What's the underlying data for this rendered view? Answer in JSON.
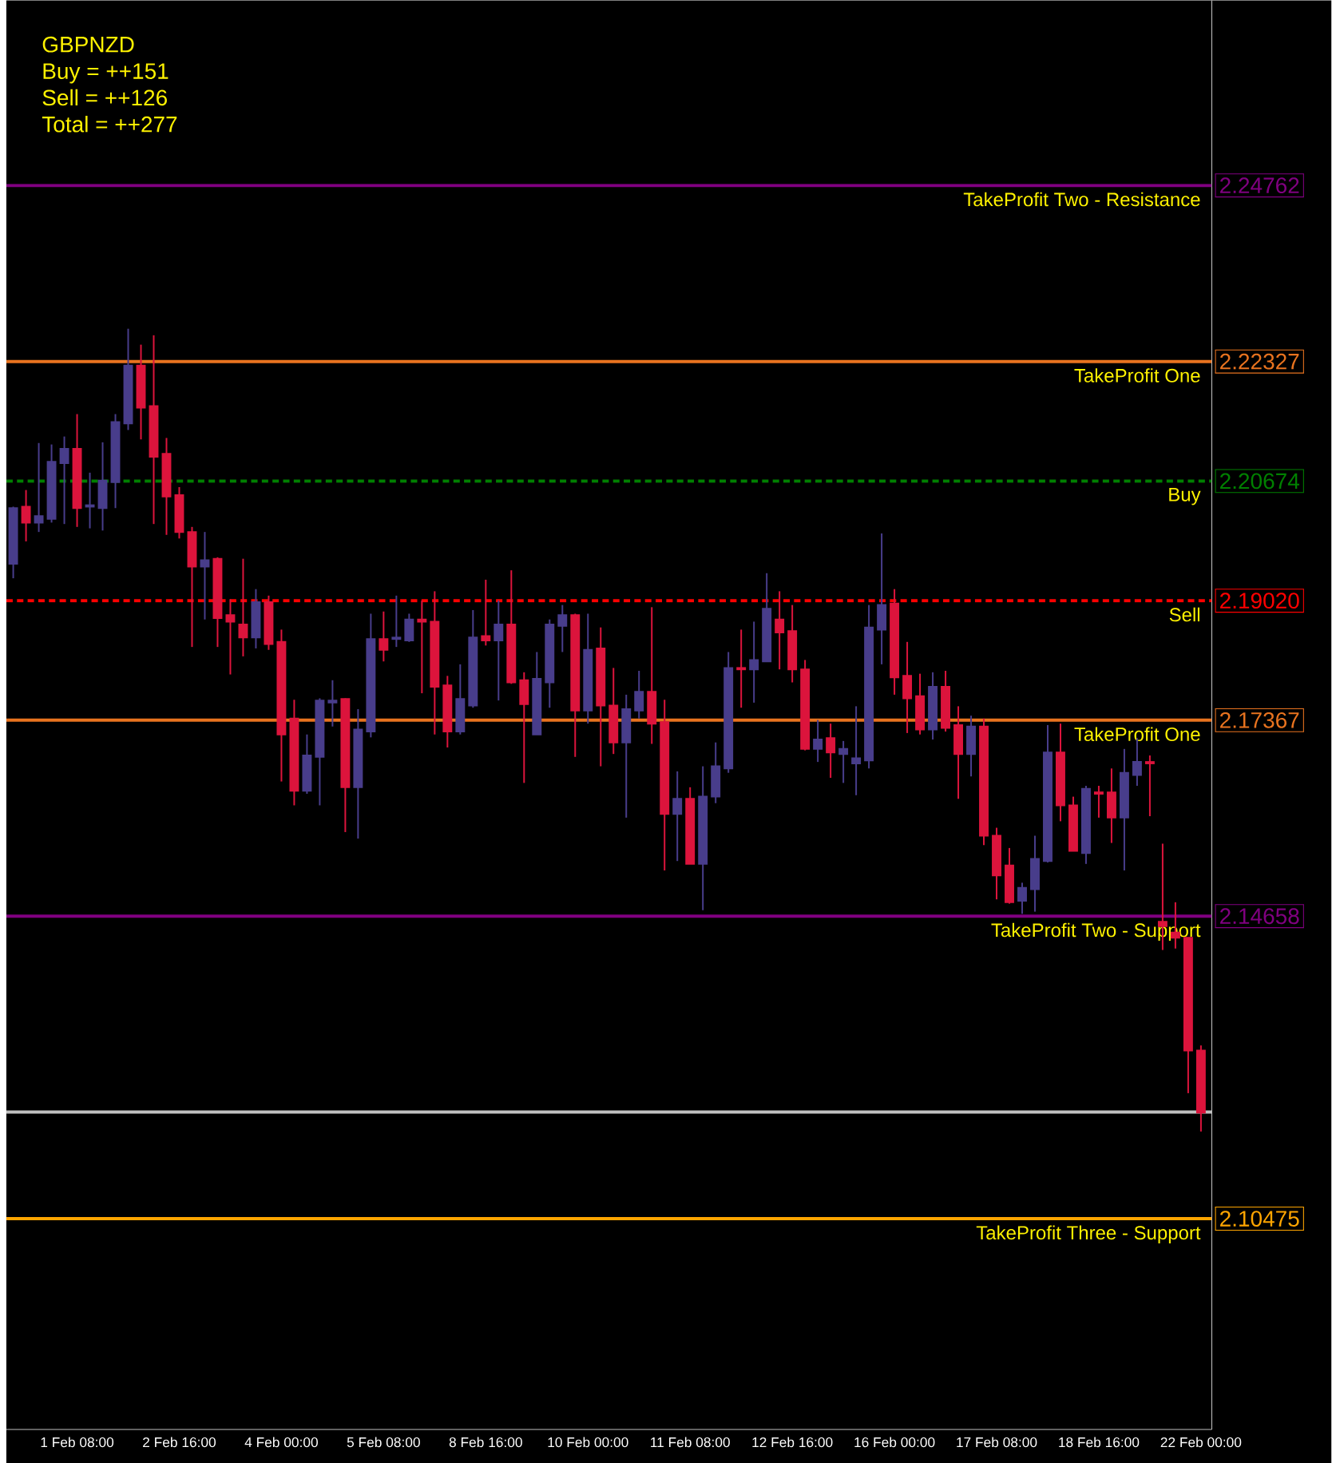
{
  "chart_data": {
    "type": "candlestick",
    "categories": [
      null,
      null,
      null,
      null,
      null,
      "1 Feb 08:00",
      null,
      null,
      null,
      null,
      null,
      null,
      null,
      "2 Feb 16:00",
      null,
      null,
      null,
      null,
      null,
      null,
      null,
      "4 Feb 00:00",
      null,
      null,
      null,
      null,
      null,
      null,
      null,
      "5 Feb 08:00",
      null,
      null,
      null,
      null,
      null,
      null,
      null,
      "8 Feb 16:00",
      null,
      null,
      null,
      null,
      null,
      null,
      null,
      "10 Feb 00:00",
      null,
      null,
      null,
      null,
      null,
      null,
      null,
      "11 Feb 08:00",
      null,
      null,
      null,
      null,
      null,
      null,
      null,
      "12 Feb 16:00",
      null,
      null,
      null,
      null,
      null,
      null,
      null,
      "16 Feb 00:00",
      null,
      null,
      null,
      null,
      null,
      null,
      null,
      "17 Feb 08:00",
      null,
      null,
      null,
      null,
      null,
      null,
      null,
      "18 Feb 16:00",
      null,
      null,
      null,
      null,
      null,
      null,
      null,
      "22 Feb 00:00"
    ],
    "ohlc": [
      [
        2.1953,
        2.2032,
        2.1933,
        2.203
      ],
      [
        2.2032,
        2.2055,
        2.1984,
        2.201
      ],
      [
        2.201,
        2.212,
        2.1997,
        2.2019
      ],
      [
        2.2015,
        2.2118,
        2.201,
        2.2094
      ],
      [
        2.2092,
        2.2129,
        2.2008,
        2.2112
      ],
      [
        2.2112,
        2.216,
        2.2004,
        2.203
      ],
      [
        2.2032,
        2.2079,
        2.2002,
        2.2034
      ],
      [
        2.203,
        2.2121,
        2.1999,
        2.2068
      ],
      [
        2.2066,
        2.216,
        2.203,
        2.2149
      ],
      [
        2.2147,
        2.2278,
        2.2138,
        2.2227
      ],
      [
        2.2227,
        2.2256,
        2.2125,
        2.2169
      ],
      [
        2.2171,
        2.2269,
        2.2008,
        2.2101
      ],
      [
        2.2105,
        2.2127,
        2.1993,
        2.2046
      ],
      [
        2.2048,
        2.2059,
        2.1988,
        2.1997
      ],
      [
        2.1997,
        2.2004,
        2.1838,
        2.1949
      ],
      [
        2.1949,
        2.1997,
        2.1876,
        2.1958
      ],
      [
        2.196,
        2.1962,
        2.1838,
        2.1878
      ],
      [
        2.1882,
        2.1904,
        2.18,
        2.1873
      ],
      [
        2.1869,
        2.196,
        2.1825,
        2.1851
      ],
      [
        2.1851,
        2.1918,
        2.1836,
        2.19
      ],
      [
        2.19,
        2.1909,
        2.1834,
        2.1842
      ],
      [
        2.1845,
        2.1862,
        2.1652,
        2.1717
      ],
      [
        2.1739,
        2.1765,
        2.1619,
        2.1639
      ],
      [
        2.1639,
        2.1717,
        2.1635,
        2.1688
      ],
      [
        2.1686,
        2.1767,
        2.1619,
        2.1764
      ],
      [
        2.1761,
        2.1792,
        2.1728,
        2.1764
      ],
      [
        2.1766,
        2.1767,
        2.1582,
        2.1644
      ],
      [
        2.1644,
        2.1752,
        2.1573,
        2.1724
      ],
      [
        2.1721,
        2.1884,
        2.1713,
        2.1849
      ],
      [
        2.1849,
        2.1887,
        2.1818,
        2.1834
      ],
      [
        2.1849,
        2.1909,
        2.1838,
        2.1851
      ],
      [
        2.1847,
        2.1884,
        2.1845,
        2.1876
      ],
      [
        2.1876,
        2.1902,
        2.1774,
        2.1873
      ],
      [
        2.1873,
        2.1915,
        2.1717,
        2.1783
      ],
      [
        2.1785,
        2.1798,
        2.1699,
        2.1721
      ],
      [
        2.1721,
        2.1814,
        2.1717,
        2.1766
      ],
      [
        2.1757,
        2.1889,
        2.1754,
        2.1851
      ],
      [
        2.1853,
        2.1931,
        2.184,
        2.1847
      ],
      [
        2.1847,
        2.1902,
        2.1764,
        2.1869
      ],
      [
        2.1869,
        2.1944,
        2.1787,
        2.1789
      ],
      [
        2.1792,
        2.1803,
        2.165,
        2.1759
      ],
      [
        2.1717,
        2.1831,
        2.1717,
        2.1794
      ],
      [
        2.1789,
        2.1876,
        2.1754,
        2.1869
      ],
      [
        2.1867,
        2.1896,
        2.1831,
        2.1882
      ],
      [
        2.1882,
        2.1884,
        2.1686,
        2.175
      ],
      [
        2.175,
        2.1884,
        2.1732,
        2.1834
      ],
      [
        2.1836,
        2.1865,
        2.1673,
        2.1757
      ],
      [
        2.1757,
        2.1809,
        2.169,
        2.1706
      ],
      [
        2.1706,
        2.1772,
        2.1602,
        2.1752
      ],
      [
        2.175,
        2.1805,
        2.1739,
        2.1776
      ],
      [
        2.1776,
        2.1893,
        2.1704,
        2.1732
      ],
      [
        2.1734,
        2.1765,
        2.1529,
        2.1607
      ],
      [
        2.1607,
        2.1666,
        2.1542,
        2.1628
      ],
      [
        2.1628,
        2.1644,
        2.1538,
        2.1538
      ],
      [
        2.1538,
        2.1673,
        2.1474,
        2.1631
      ],
      [
        2.1631,
        2.1706,
        2.1622,
        2.1673
      ],
      [
        2.167,
        2.1831,
        2.1664,
        2.1809
      ],
      [
        2.1809,
        2.1862,
        2.1754,
        2.1807
      ],
      [
        2.1807,
        2.1873,
        2.1761,
        2.182
      ],
      [
        2.1818,
        2.194,
        2.1818,
        2.1891
      ],
      [
        2.1876,
        2.1915,
        2.1807,
        2.1858
      ],
      [
        2.186,
        2.1896,
        2.1789,
        2.1807
      ],
      [
        2.1807,
        2.182,
        2.1695,
        2.1697
      ],
      [
        2.1697,
        2.1737,
        2.1679,
        2.171
      ],
      [
        2.1712,
        2.1732,
        2.1657,
        2.1692
      ],
      [
        2.169,
        2.1708,
        2.165,
        2.1697
      ],
      [
        2.1677,
        2.1756,
        2.1633,
        2.1684
      ],
      [
        2.1681,
        2.1896,
        2.167,
        2.1865
      ],
      [
        2.1862,
        2.1995,
        2.1814,
        2.1896
      ],
      [
        2.1898,
        2.1918,
        2.1772,
        2.1796
      ],
      [
        2.1798,
        2.1845,
        2.1719,
        2.1767
      ],
      [
        2.177,
        2.1801,
        2.1717,
        2.1724
      ],
      [
        2.1724,
        2.1803,
        2.171,
        2.1783
      ],
      [
        2.1783,
        2.1805,
        2.1721,
        2.1726
      ],
      [
        2.173,
        2.1756,
        2.1628,
        2.169
      ],
      [
        2.169,
        2.1743,
        2.1659,
        2.1728
      ],
      [
        2.1728,
        2.1739,
        2.1564,
        2.1577
      ],
      [
        2.1577,
        2.1588,
        2.1489,
        2.1522
      ],
      [
        2.1536,
        2.156,
        2.1483,
        2.1485
      ],
      [
        2.1487,
        2.1512,
        2.1469,
        2.1505
      ],
      [
        2.1503,
        2.1577,
        2.1472,
        2.1545
      ],
      [
        2.1542,
        2.173,
        2.154,
        2.1692
      ],
      [
        2.1692,
        2.1732,
        2.1597,
        2.1619
      ],
      [
        2.1619,
        2.1631,
        2.1556,
        2.1556
      ],
      [
        2.1553,
        2.1646,
        2.1538,
        2.1642
      ],
      [
        2.1637,
        2.1646,
        2.1602,
        2.1635
      ],
      [
        2.1637,
        2.167,
        2.1567,
        2.1602
      ],
      [
        2.1602,
        2.1697,
        2.1529,
        2.1664
      ],
      [
        2.1661,
        2.1712,
        2.1646,
        2.1679
      ],
      [
        2.1679,
        2.1688,
        2.1604,
        2.1677
      ],
      [
        2.1458,
        2.1566,
        2.1419,
        2.1452
      ],
      [
        2.1443,
        2.1485,
        2.1421,
        2.1436
      ],
      [
        2.1436,
        2.1436,
        2.1221,
        2.128
      ],
      [
        2.128,
        2.1287,
        2.1168,
        2.1194
      ]
    ],
    "colors": [
      "#483d8b",
      "#dc143c",
      "#483d8b",
      "#483d8b",
      "#483d8b",
      "#dc143c",
      "#483d8b",
      "#483d8b",
      "#483d8b",
      "#483d8b",
      "#dc143c",
      "#dc143c",
      "#dc143c",
      "#dc143c",
      "#dc143c",
      "#483d8b",
      "#dc143c",
      "#dc143c",
      "#dc143c",
      "#483d8b",
      "#dc143c",
      "#dc143c",
      "#dc143c",
      "#483d8b",
      "#483d8b",
      "#483d8b",
      "#dc143c",
      "#483d8b",
      "#483d8b",
      "#dc143c",
      "#483d8b",
      "#483d8b",
      "#dc143c",
      "#dc143c",
      "#dc143c",
      "#483d8b",
      "#483d8b",
      "#dc143c",
      "#483d8b",
      "#dc143c",
      "#dc143c",
      "#483d8b",
      "#483d8b",
      "#483d8b",
      "#dc143c",
      "#483d8b",
      "#dc143c",
      "#dc143c",
      "#483d8b",
      "#483d8b",
      "#dc143c",
      "#dc143c",
      "#483d8b",
      "#dc143c",
      "#483d8b",
      "#483d8b",
      "#483d8b",
      "#dc143c",
      "#483d8b",
      "#483d8b",
      "#dc143c",
      "#dc143c",
      "#dc143c",
      "#483d8b",
      "#dc143c",
      "#483d8b",
      "#483d8b",
      "#483d8b",
      "#483d8b",
      "#dc143c",
      "#dc143c",
      "#dc143c",
      "#483d8b",
      "#dc143c",
      "#dc143c",
      "#483d8b",
      "#dc143c",
      "#dc143c",
      "#dc143c",
      "#483d8b",
      "#483d8b",
      "#483d8b",
      "#dc143c",
      "#dc143c",
      "#483d8b",
      "#dc143c",
      "#dc143c",
      "#483d8b",
      "#483d8b",
      "#dc143c",
      "#dc143c",
      "#dc143c",
      "#dc143c",
      "#dc143c"
    ],
    "ylim": [
      2.0756,
      2.2732
    ],
    "yticks": [
      2.24762,
      2.22327,
      2.20674,
      {
        "value": 2.1902,
        "label": "2.19020"
      },
      2.17367,
      2.14658,
      2.10475
    ],
    "ref_lines": [
      {
        "axis": "y",
        "value": 2.24762,
        "label": "TakeProfit Two - Resistance",
        "color": "#800080",
        "line_style": "solid"
      },
      {
        "axis": "y",
        "value": 2.22327,
        "label": "TakeProfit One",
        "color": "#e8731f",
        "line_style": "solid"
      },
      {
        "axis": "y",
        "value": 2.20674,
        "label": "Buy",
        "color": "#008000",
        "line_style": "dashed"
      },
      {
        "axis": "y",
        "value": 2.1902,
        "label": "Sell",
        "color": "#ff0000",
        "line_style": "dashed"
      },
      {
        "axis": "y",
        "value": 2.17367,
        "label": "TakeProfit One",
        "color": "#e8731f",
        "line_style": "solid"
      },
      {
        "axis": "y",
        "value": 2.14658,
        "label": "TakeProfit Two - Support",
        "color": "#800080",
        "line_style": "solid"
      },
      {
        "axis": "y",
        "value": 2.1195,
        "color": "#c0c0c0",
        "line_style": "solid"
      },
      {
        "axis": "y",
        "value": 2.10475,
        "label": "TakeProfit Three - Support",
        "color": "#ffa500",
        "line_style": "solid"
      }
    ],
    "annotations": [
      "GBPNZD",
      "Buy = ++151",
      "Sell = ++126",
      "Total = ++277"
    ]
  }
}
